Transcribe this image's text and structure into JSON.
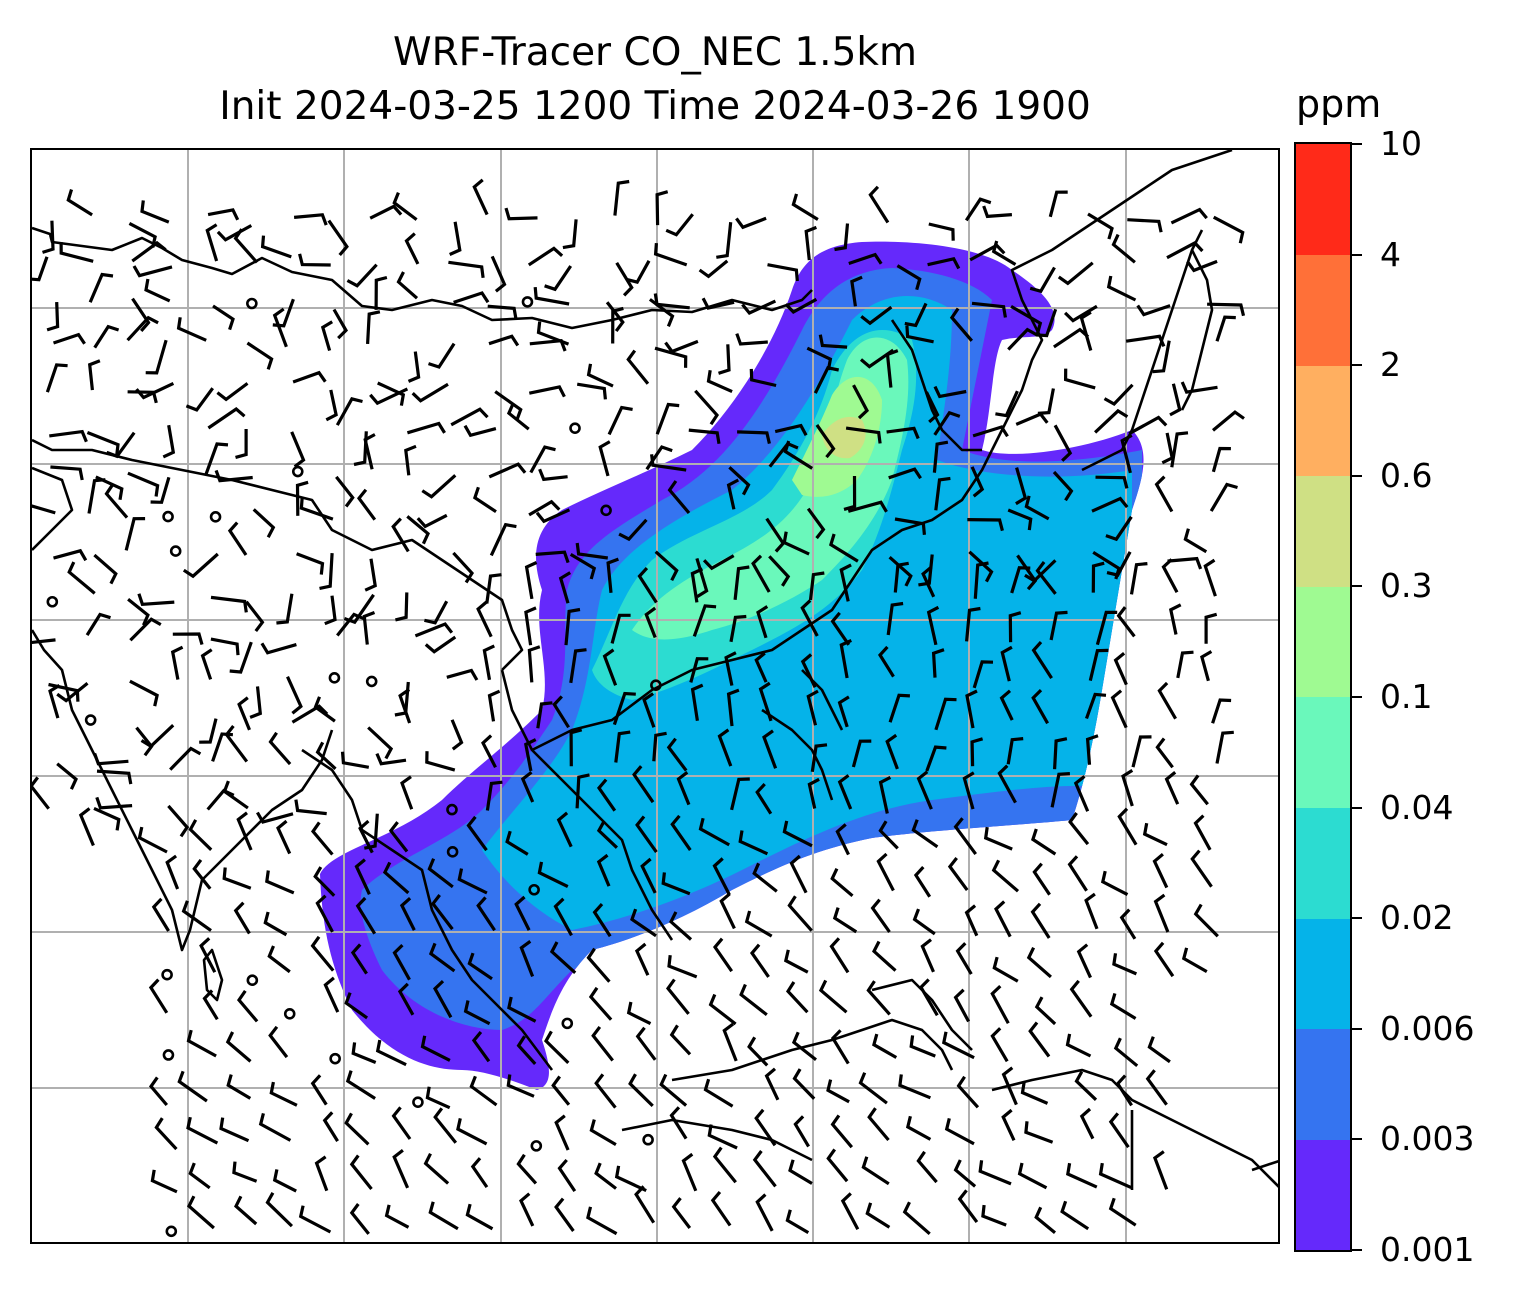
{
  "title": {
    "line1": "WRF-Tracer CO_NEC 1.5km",
    "line2": "Init 2024-03-25 1200 Time 2024-03-26 1900"
  },
  "colorbar": {
    "unit": "ppm",
    "levels": [
      "0.001",
      "0.003",
      "0.006",
      "0.02",
      "0.04",
      "0.1",
      "0.3",
      "0.6",
      "2",
      "4",
      "10"
    ],
    "colors": [
      "#6529fb",
      "#3574f0",
      "#05b3e9",
      "#2cdcd1",
      "#6af8bb",
      "#9ffa92",
      "#cfe084",
      "#ffaf60",
      "#ff7038",
      "#ff2a19"
    ]
  },
  "map": {
    "gridlines": true,
    "background": "#ffffff",
    "coastline_color": "#000000"
  }
}
